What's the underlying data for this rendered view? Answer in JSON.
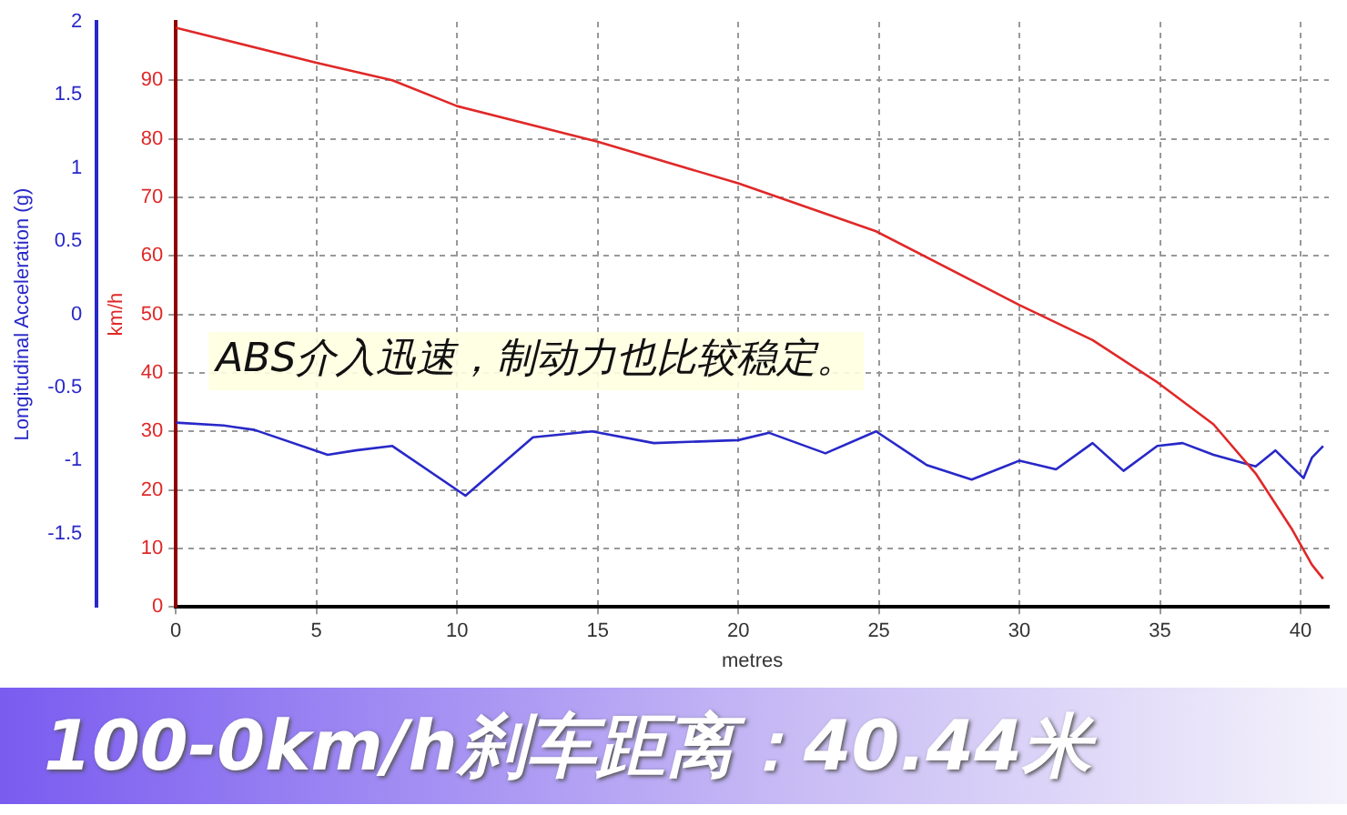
{
  "chart_data": {
    "type": "line",
    "title": "100-0km/h刹车距离：40.44米",
    "xlabel": "metres",
    "ylabel": "km/h",
    "y2label": "Longitudinal Acceleration (g)",
    "annotations": [
      "ABS介入迅速，制动力也比较稳定。"
    ],
    "series": [
      {
        "name": null,
        "color": "#e02828",
        "x": [
          0,
          5,
          7.7,
          10,
          15,
          20,
          24.9,
          30,
          32.6,
          34.9,
          36.9,
          38.4,
          39.7,
          40.4,
          40.8
        ],
        "values": [
          99,
          93,
          90,
          85.6,
          79.5,
          72.4,
          64.2,
          51.6,
          45.6,
          38.4,
          31.2,
          22.8,
          13.2,
          7.2,
          4.8
        ]
      },
      {
        "name": null,
        "color": "#2828c8",
        "axis": "y2",
        "x": [
          0,
          1.7,
          2.8,
          5.4,
          6.4,
          7.7,
          10.3,
          12.7,
          14.8,
          17,
          20,
          21.1,
          23.1,
          24.9,
          26.7,
          28.3,
          30,
          31.3,
          32.6,
          33.7,
          34.9,
          35.8,
          36.9,
          38.4,
          39.1,
          40.1,
          40.4,
          40.8
        ],
        "values": [
          -0.74,
          -0.76,
          -0.79,
          -0.96,
          -0.93,
          -0.9,
          -1.24,
          -0.84,
          -0.8,
          -0.88,
          -0.86,
          -0.81,
          -0.95,
          -0.8,
          -1.03,
          -1.13,
          -1,
          -1.06,
          -0.88,
          -1.07,
          -0.9,
          -0.88,
          -0.96,
          -1.04,
          -0.93,
          -1.12,
          -0.98,
          -0.9
        ]
      }
    ],
    "xlim": [
      0,
      41
    ],
    "xticks": [
      0,
      5,
      10,
      15,
      20,
      25,
      30,
      35,
      40
    ],
    "ylim": [
      0,
      100
    ],
    "yticks": [
      0,
      10,
      20,
      30,
      40,
      50,
      60,
      70,
      80,
      90
    ],
    "y2lim": [
      -2,
      2
    ],
    "y2ticks": [
      -1.5,
      -1,
      -0.5,
      0,
      0.5,
      1,
      1.5,
      2
    ],
    "grid": true,
    "line_style": "solid",
    "marker": "none",
    "legend": false
  }
}
